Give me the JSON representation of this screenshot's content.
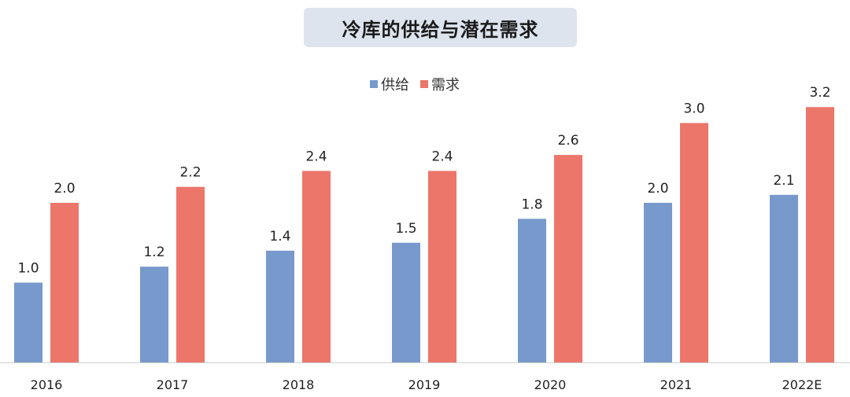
{
  "chart_data": {
    "type": "bar",
    "title": "冷库的供给与潜在需求",
    "categories": [
      "2016",
      "2017",
      "2018",
      "2019",
      "2020",
      "2021",
      "2022E"
    ],
    "series": [
      {
        "name": "供给",
        "color": "#7799cc",
        "values": [
          1.0,
          1.2,
          1.4,
          1.5,
          1.8,
          2.0,
          2.1
        ],
        "labels": [
          "1.0",
          "1.2",
          "1.4",
          "1.5",
          "1.8",
          "2.0",
          "2.1"
        ]
      },
      {
        "name": "需求",
        "color": "#eb7669",
        "values": [
          2.0,
          2.2,
          2.4,
          2.4,
          2.6,
          3.0,
          3.2
        ],
        "labels": [
          "2.0",
          "2.2",
          "2.4",
          "2.4",
          "2.6",
          "3.0",
          "3.2"
        ]
      }
    ],
    "ylim": [
      0,
      3.2
    ],
    "grid": false,
    "legend": "top-center",
    "data_labels": true
  }
}
